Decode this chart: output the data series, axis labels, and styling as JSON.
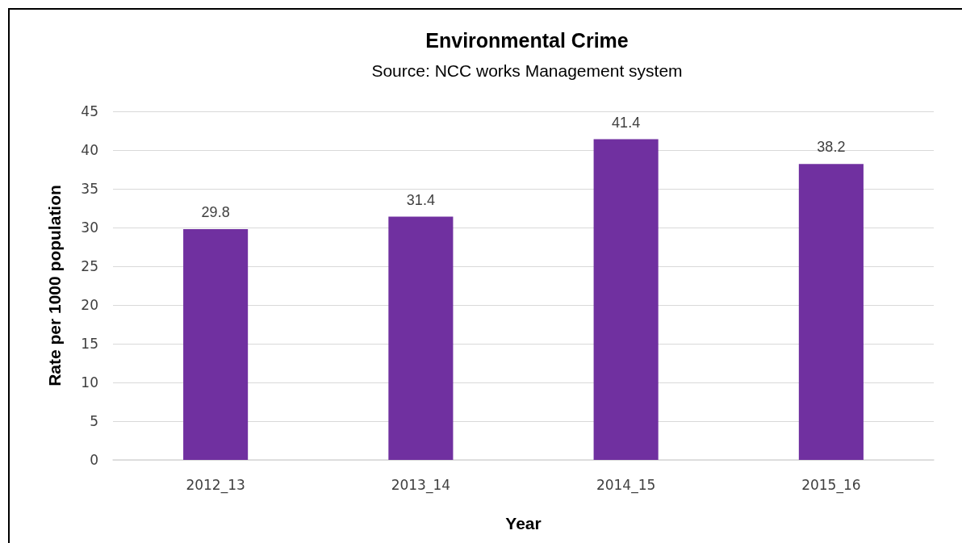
{
  "chart_data": {
    "type": "bar",
    "title": "Environmental Crime",
    "subtitle": "Source: NCC works Management system",
    "xlabel": "Year",
    "ylabel": "Rate per 1000 population",
    "categories": [
      "2012_13",
      "2013_14",
      "2014_15",
      "2015_16"
    ],
    "values": [
      29.8,
      31.4,
      41.4,
      38.2
    ],
    "color": "#7030a0",
    "ylim": [
      0,
      45
    ],
    "yticks": [
      0,
      5,
      10,
      15,
      20,
      25,
      30,
      35,
      40,
      45
    ],
    "grid": "y",
    "data_labels": true
  }
}
